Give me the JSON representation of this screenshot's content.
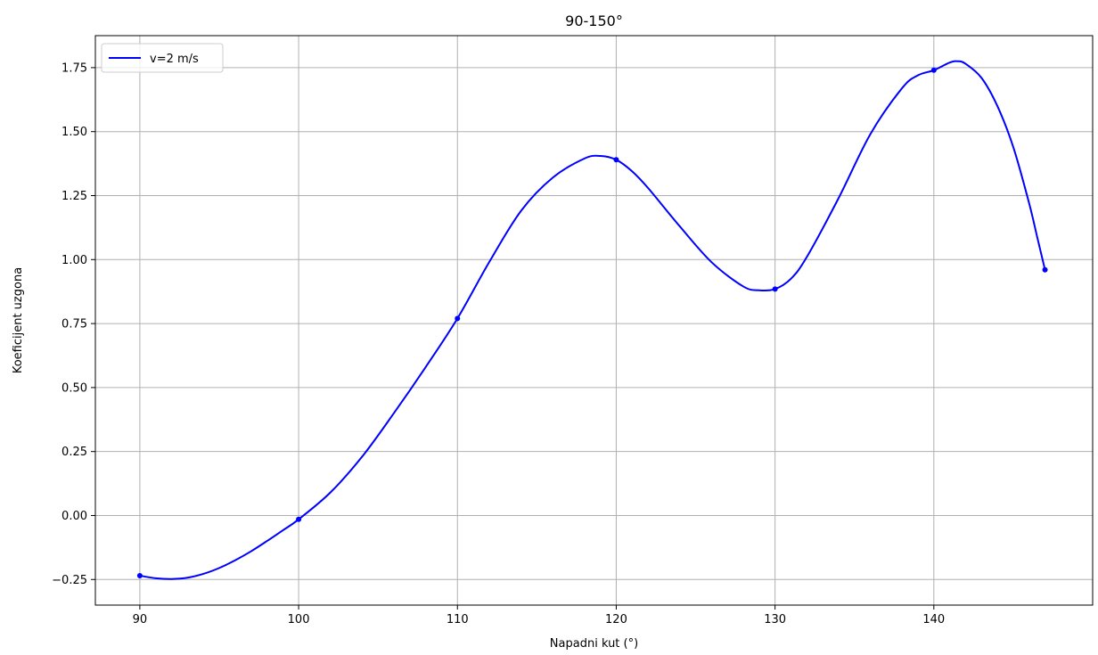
{
  "chart_data": {
    "type": "line",
    "title": "90-150°",
    "xlabel": "Napadni kut (°)",
    "ylabel": "Koeficijent uzgona",
    "xlim": [
      87.2,
      150.0
    ],
    "ylim": [
      -0.35,
      1.875
    ],
    "xticks": [
      90,
      100,
      110,
      120,
      130,
      140
    ],
    "yticks": [
      -0.25,
      0.0,
      0.25,
      0.5,
      0.75,
      1.0,
      1.25,
      1.5,
      1.75
    ],
    "ytick_labels": [
      "−0.25",
      "0.00",
      "0.25",
      "0.50",
      "0.75",
      "1.00",
      "1.25",
      "1.50",
      "1.75"
    ],
    "grid": true,
    "legend_position": "top-left",
    "series": [
      {
        "name": "v=2 m/s",
        "color": "#0000ff",
        "markers": {
          "x": [
            90,
            100,
            110,
            120,
            130,
            140,
            147
          ],
          "y": [
            -0.235,
            -0.015,
            0.77,
            1.39,
            0.885,
            1.74,
            0.96
          ]
        },
        "curve": {
          "x": [
            90,
            91,
            92,
            93,
            94,
            95,
            96,
            97,
            98,
            99,
            100,
            102,
            104,
            106,
            108,
            110,
            112,
            114,
            116,
            118,
            119,
            120,
            121,
            122,
            124,
            126,
            128,
            129,
            130,
            131,
            132,
            134,
            136,
            138,
            139,
            140,
            141,
            141.5,
            142,
            143,
            144,
            145,
            146,
            146.5,
            147
          ],
          "y": [
            -0.235,
            -0.245,
            -0.248,
            -0.243,
            -0.228,
            -0.205,
            -0.175,
            -0.14,
            -0.1,
            -0.058,
            -0.015,
            0.09,
            0.23,
            0.4,
            0.58,
            0.77,
            0.99,
            1.19,
            1.32,
            1.395,
            1.405,
            1.39,
            1.345,
            1.28,
            1.13,
            0.99,
            0.895,
            0.88,
            0.885,
            0.925,
            1.01,
            1.24,
            1.49,
            1.67,
            1.72,
            1.74,
            1.77,
            1.775,
            1.765,
            1.71,
            1.6,
            1.44,
            1.22,
            1.09,
            0.96
          ]
        }
      }
    ]
  }
}
